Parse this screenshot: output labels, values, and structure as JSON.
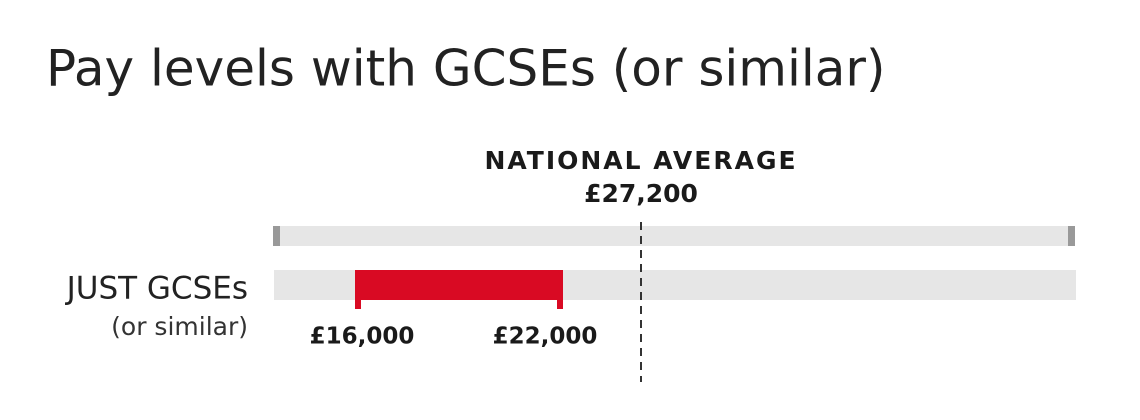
{
  "title": "Pay levels with GCSEs (or similar)",
  "average": {
    "label": "NATIONAL AVERAGE",
    "value": "£27,200"
  },
  "rows": [
    {
      "label": "JUST GCSEs",
      "sublabel": "(or similar)",
      "low": "£16,000",
      "high": "£22,000"
    }
  ]
}
